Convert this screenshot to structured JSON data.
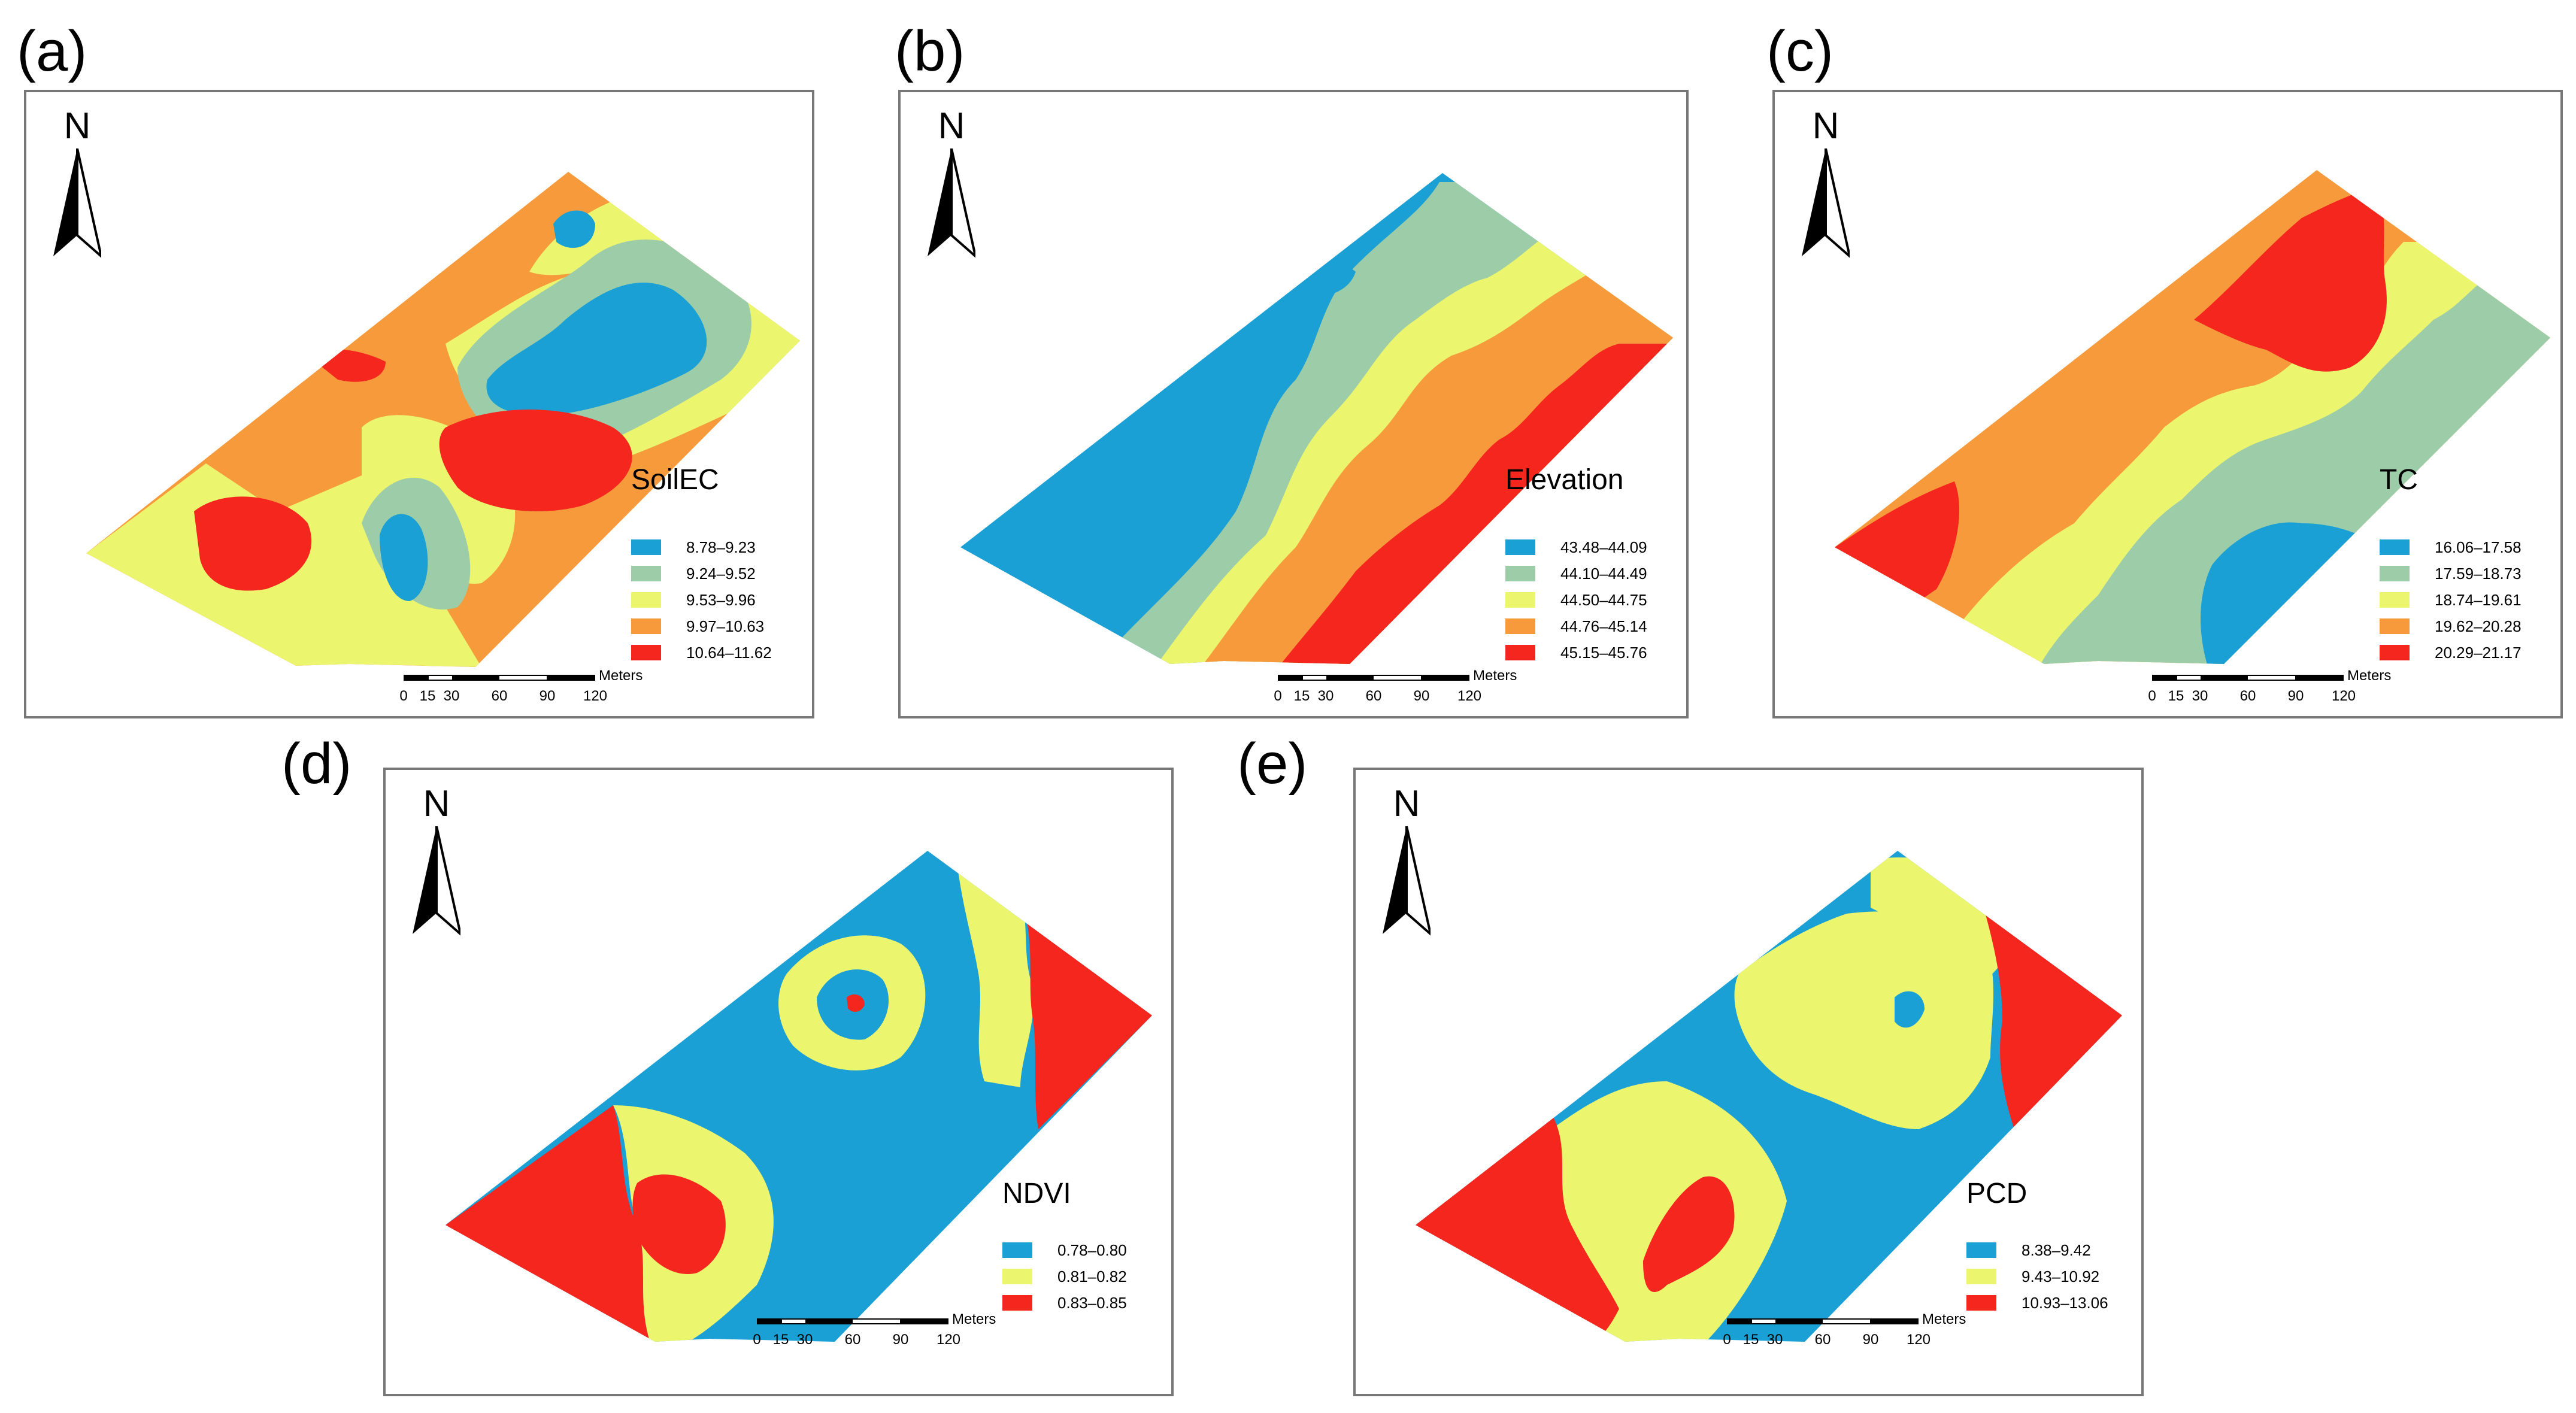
{
  "figure": {
    "panels": [
      {
        "id": "a",
        "label": "(a)",
        "variable": "SoilEC",
        "classes": [
          {
            "range": "8.78–9.23",
            "color": "#1aa0d4"
          },
          {
            "range": "9.24–9.52",
            "color": "#9ccda8"
          },
          {
            "range": "9.53–9.96",
            "color": "#ebf56e"
          },
          {
            "range": "9.97–10.63",
            "color": "#f69a3c"
          },
          {
            "range": "10.64–11.62",
            "color": "#f4261e"
          }
        ]
      },
      {
        "id": "b",
        "label": "(b)",
        "variable": "Elevation",
        "classes": [
          {
            "range": "43.48–44.09",
            "color": "#1aa0d4"
          },
          {
            "range": "44.10–44.49",
            "color": "#9ccda8"
          },
          {
            "range": "44.50–44.75",
            "color": "#ebf56e"
          },
          {
            "range": "44.76–45.14",
            "color": "#f69a3c"
          },
          {
            "range": "45.15–45.76",
            "color": "#f4261e"
          }
        ]
      },
      {
        "id": "c",
        "label": "(c)",
        "variable": "TC",
        "classes": [
          {
            "range": "16.06–17.58",
            "color": "#1aa0d4"
          },
          {
            "range": "17.59–18.73",
            "color": "#9ccda8"
          },
          {
            "range": "18.74–19.61",
            "color": "#ebf56e"
          },
          {
            "range": "19.62–20.28",
            "color": "#f69a3c"
          },
          {
            "range": "20.29–21.17",
            "color": "#f4261e"
          }
        ]
      },
      {
        "id": "d",
        "label": "(d)",
        "variable": "NDVI",
        "classes": [
          {
            "range": "0.78–0.80",
            "color": "#1aa0d4"
          },
          {
            "range": "0.81–0.82",
            "color": "#ebf56e"
          },
          {
            "range": "0.83–0.85",
            "color": "#f4261e"
          }
        ]
      },
      {
        "id": "e",
        "label": "(e)",
        "variable": "PCD",
        "classes": [
          {
            "range": "8.38–9.42",
            "color": "#1aa0d4"
          },
          {
            "range": "9.43–10.92",
            "color": "#ebf56e"
          },
          {
            "range": "10.93–13.06",
            "color": "#f4261e"
          }
        ]
      }
    ],
    "north_label": "N",
    "scale_unit": "Meters",
    "scale_ticks": [
      "0",
      "15",
      "30",
      "60",
      "90",
      "120"
    ],
    "scale_tick_values": [
      0,
      15,
      30,
      60,
      90,
      120
    ],
    "scale_max": 120
  }
}
